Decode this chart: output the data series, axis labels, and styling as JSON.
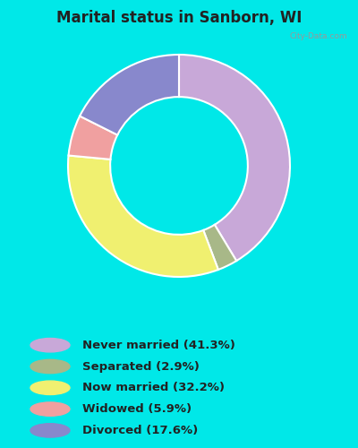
{
  "title": "Marital status in Sanborn, WI",
  "slices": [
    {
      "label": "Never married (41.3%)",
      "value": 41.3,
      "color": "#c8a8d8"
    },
    {
      "label": "Separated (2.9%)",
      "value": 2.9,
      "color": "#a8b888"
    },
    {
      "label": "Now married (32.2%)",
      "value": 32.2,
      "color": "#f0f070"
    },
    {
      "label": "Widowed (5.9%)",
      "value": 5.9,
      "color": "#f0a0a0"
    },
    {
      "label": "Divorced (17.6%)",
      "value": 17.6,
      "color": "#8888cc"
    }
  ],
  "bg_outer": "#00e8e8",
  "bg_chart": "#d8eee0",
  "title_color": "#222222",
  "title_fontsize": 12,
  "legend_fontsize": 9.5,
  "donut_width": 0.38,
  "start_angle": 90
}
